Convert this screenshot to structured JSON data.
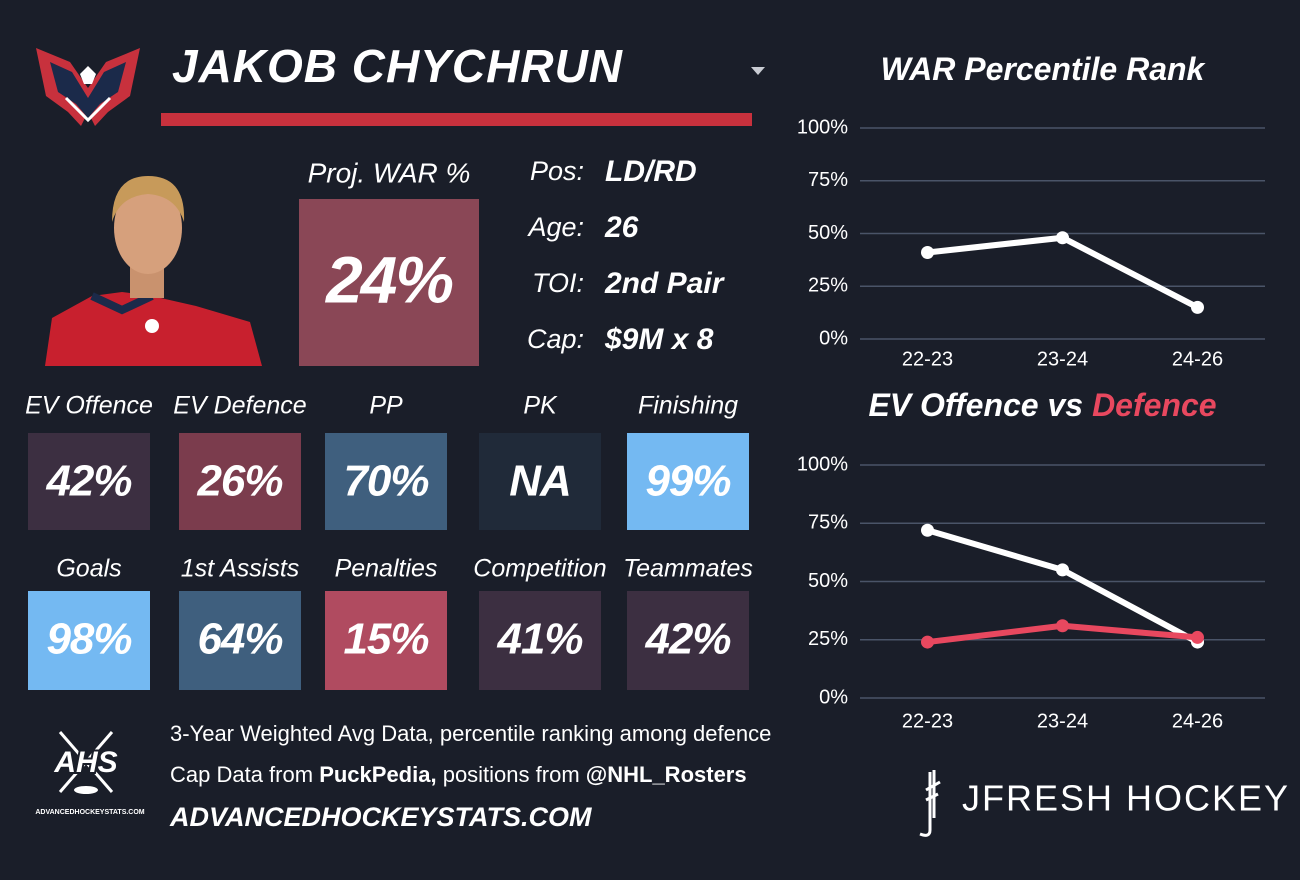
{
  "header": {
    "name": "JAKOB CHYCHRUN"
  },
  "projection": {
    "label": "Proj. WAR %",
    "value": "24%",
    "color": "#8a4756"
  },
  "info": [
    {
      "label": "Pos:",
      "value": "LD/RD"
    },
    {
      "label": "Age:",
      "value": "26"
    },
    {
      "label": "TOI:",
      "value": "2nd Pair"
    },
    {
      "label": "Cap:",
      "value": "$9M x 8"
    }
  ],
  "tiles": [
    {
      "label": "EV Offence",
      "value": "42%",
      "color": "#3c2f41"
    },
    {
      "label": "EV Defence",
      "value": "26%",
      "color": "#7b3c4d"
    },
    {
      "label": "PP",
      "value": "70%",
      "color": "#3f5f7e"
    },
    {
      "label": "PK",
      "value": "NA",
      "color": "#202a39"
    },
    {
      "label": "Finishing",
      "value": "99%",
      "color": "#74b9f2"
    },
    {
      "label": "Goals",
      "value": "98%",
      "color": "#74b9f2"
    },
    {
      "label": "1st Assists",
      "value": "64%",
      "color": "#3f5f7e"
    },
    {
      "label": "Penalties",
      "value": "15%",
      "color": "#b04b60"
    },
    {
      "label": "Competition",
      "value": "41%",
      "color": "#3c2f41"
    },
    {
      "label": "Teammates",
      "value": "42%",
      "color": "#3c2f41"
    }
  ],
  "footer": {
    "line1": "3-Year Weighted Avg Data, percentile ranking among defence",
    "line2": [
      "Cap Data from",
      "PuckPedia,",
      "positions from",
      "@NHL_Rosters"
    ],
    "site": "ADVANCEDHOCKEYSTATS.COM",
    "logo": "AHS",
    "logo_caption": "ADVANCEDHOCKEYSTATS.COM",
    "brand": "JFRESH HOCKEY"
  },
  "chart_data": [
    {
      "type": "line",
      "title": "WAR Percentile Rank",
      "categories": [
        "22-23",
        "23-24",
        "24-26"
      ],
      "series": [
        {
          "color": "#ffffff",
          "values": [
            41,
            48,
            15
          ]
        }
      ],
      "ylim": [
        0,
        100
      ],
      "yticks": [
        {
          "value": 0,
          "label": "0%"
        },
        {
          "value": 25,
          "label": "25%"
        },
        {
          "value": 50,
          "label": "50%"
        },
        {
          "value": 75,
          "label": "75%"
        },
        {
          "value": 100,
          "label": "100%"
        }
      ],
      "grid": true
    },
    {
      "type": "line",
      "title": "EV Offence vs",
      "title_highlight": "Defence",
      "title_highlight_color": "#e8485f",
      "categories": [
        "22-23",
        "23-24",
        "24-26"
      ],
      "series": [
        {
          "color": "#ffffff",
          "values": [
            72,
            55,
            24
          ]
        },
        {
          "color": "#e8485f",
          "values": [
            24,
            31,
            26
          ]
        }
      ],
      "ylim": [
        0,
        100
      ],
      "yticks": [
        {
          "value": 0,
          "label": "0%"
        },
        {
          "value": 25,
          "label": "25%"
        },
        {
          "value": 50,
          "label": "50%"
        },
        {
          "value": 75,
          "label": "75%"
        },
        {
          "value": 100,
          "label": "100%"
        }
      ],
      "grid": true
    }
  ]
}
